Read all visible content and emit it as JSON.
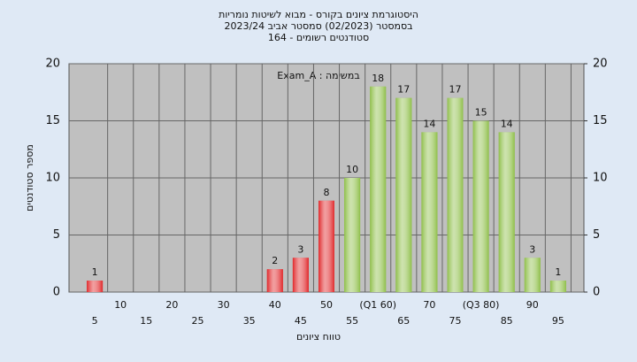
{
  "chart_data": {
    "type": "bar",
    "title": "היסטוגרמת ציונים בקורס - מבוא לשיטות נומריות",
    "subtitle": "בסמסטר  (02/2023)  סמסטר אביב  2023/24",
    "subtitle2": "סטודנטים רשומים - 164",
    "annotation": "Exam_A : במשימה",
    "x_label": "טווח ציונים",
    "y_label": "מספר סטודנטים",
    "categories": [
      "5",
      "10",
      "15",
      "20",
      "25",
      "30",
      "35",
      "40",
      "45",
      "50",
      "55",
      "(Q1 60)",
      "65",
      "70",
      "75",
      "(Q3 80)",
      "85",
      "90",
      "95"
    ],
    "values": [
      1,
      0,
      0,
      0,
      0,
      0,
      0,
      2,
      3,
      8,
      10,
      18,
      17,
      14,
      17,
      15,
      14,
      3,
      1
    ],
    "colors": [
      "#e0282b",
      "#e0282b",
      "#e0282b",
      "#e0282b",
      "#e0282b",
      "#e0282b",
      "#e0282b",
      "#e0282b",
      "#e0282b",
      "#e0282b",
      "#8fbf4a",
      "#8fbf4a",
      "#8fbf4a",
      "#8fbf4a",
      "#8fbf4a",
      "#8fbf4a",
      "#8fbf4a",
      "#8fbf4a",
      "#8fbf4a"
    ],
    "ylim": [
      0,
      20
    ],
    "yticks": [
      0,
      5,
      10,
      15,
      20
    ],
    "y2lim": [
      0,
      20
    ],
    "y2ticks": [
      0,
      5,
      10,
      15,
      20
    ],
    "grid": true
  }
}
